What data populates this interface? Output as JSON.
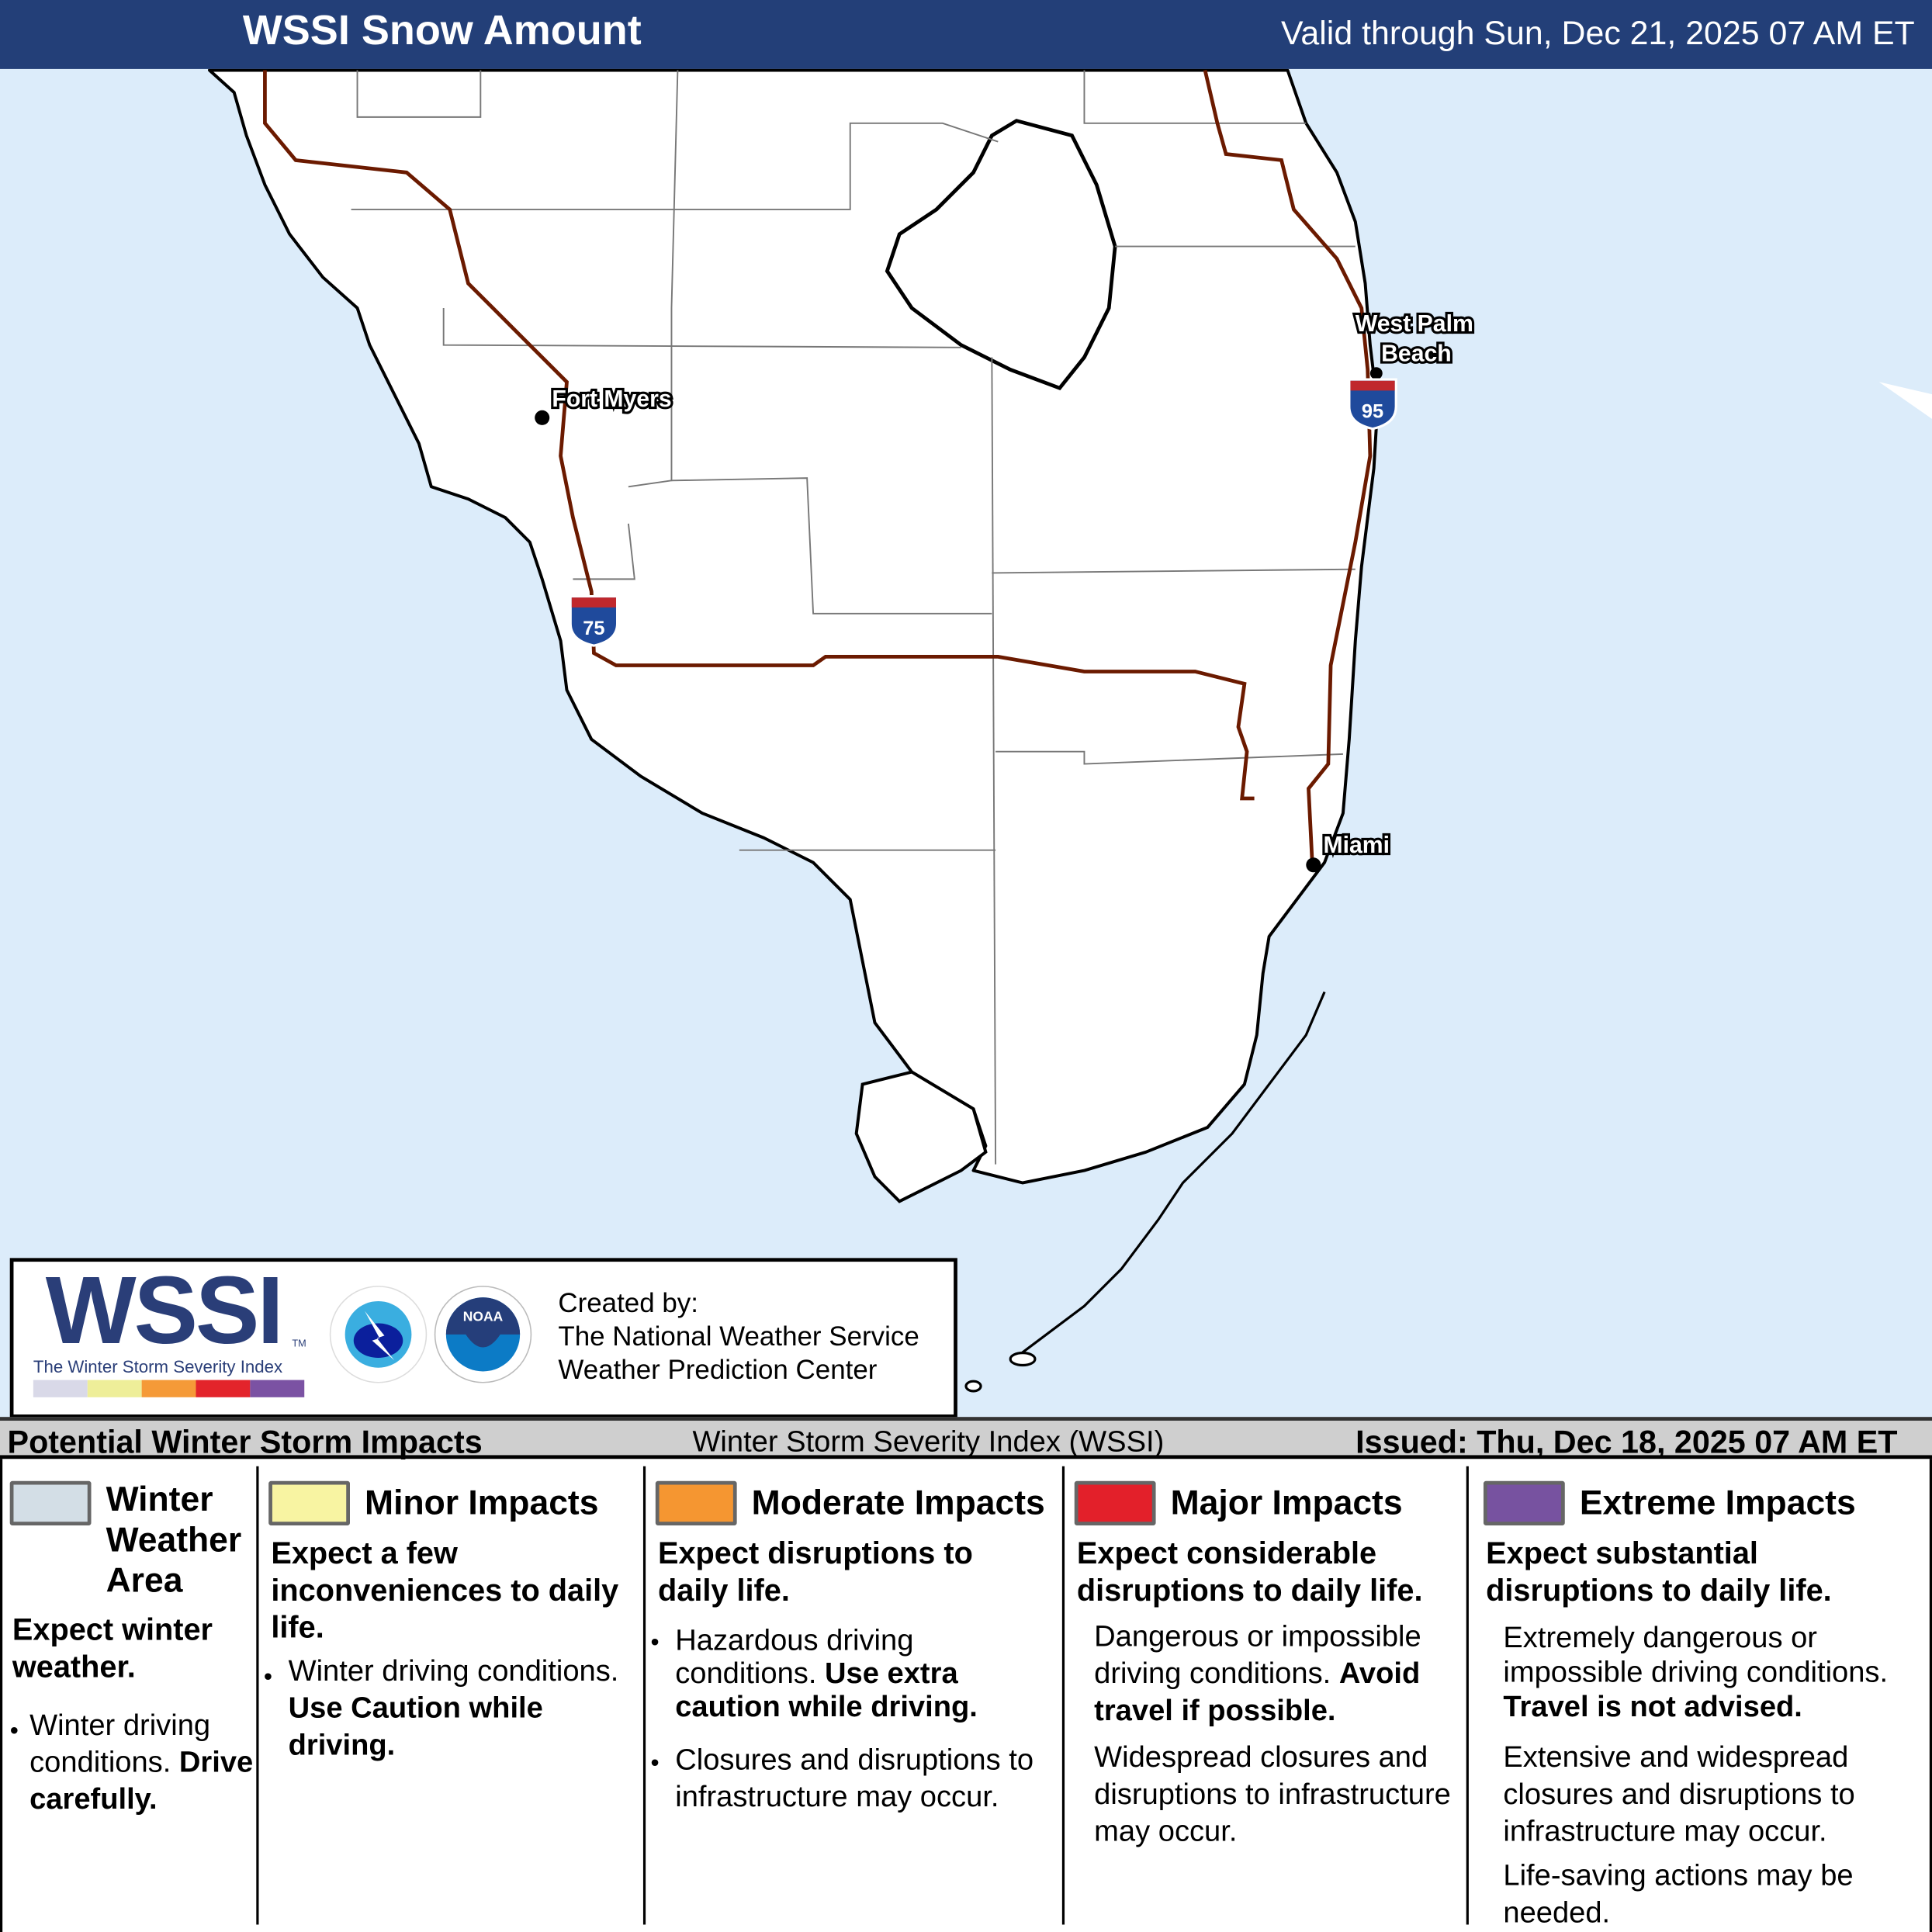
{
  "header": {
    "title": "WSSI Snow Amount",
    "valid": "Valid through Sun, Dec 21, 2025 07 AM ET"
  },
  "map": {
    "cities": [
      "Fort Myers",
      "West Palm Beach",
      "Miami"
    ],
    "west_palm_lines": [
      "West Palm",
      "Beach"
    ],
    "interstates": [
      "75",
      "95"
    ],
    "colors": {
      "water": "#dcecfa",
      "land": "#ffffff",
      "roads": "#6b1a00",
      "county_lines": "#777777",
      "coast": "#000000",
      "shield_blue": "#1f4a9c",
      "shield_red": "#c0282d"
    }
  },
  "logo": {
    "wssi": "WSSI",
    "tm": "TM",
    "subtitle": "The Winter Storm Severity Index",
    "bar_colors": [
      "#d9d9e8",
      "#eeee99",
      "#f59a38",
      "#e3242b",
      "#7b52a3"
    ],
    "nws_text": "NATIONAL WEATHER SERVICE",
    "noaa_text": "NOAA",
    "created_by": "Created by:",
    "org1": "The National Weather Service",
    "org2": "Weather Prediction Center"
  },
  "impacts_bar": {
    "left": "Potential Winter Storm Impacts",
    "middle": "Winter Storm Severity Index (WSSI)",
    "right": "Issued: Thu, Dec 18, 2025 07 AM ET"
  },
  "legend": [
    {
      "color": "#d3dee6",
      "title_lines": [
        "Winter",
        "Weather",
        "Area"
      ],
      "heading": "Expect winter weather.",
      "bullets": [
        "Winter driving conditions. "
      ],
      "bold": "Drive carefully."
    },
    {
      "color": "#f8f4a2",
      "title": "Minor Impacts",
      "heading": "Expect a few inconveniences to daily life.",
      "bullet_text": "Winter driving conditions. ",
      "bold": "Use Caution while driving."
    },
    {
      "color": "#f59631",
      "title": "Moderate Impacts",
      "heading": "Expect disruptions to daily life.",
      "b1": "Hazardous driving conditions. ",
      "b1_bold": "Use extra caution while driving.",
      "b2": "Closures and disruptions to infrastructure may occur."
    },
    {
      "color": "#e3202a",
      "title": "Major Impacts",
      "heading": "Expect considerable disruptions to daily life.",
      "p1": "Dangerous or impossible driving conditions. ",
      "p1_bold": "Avoid travel if possible.",
      "p2": "Widespread closures and disruptions to infrastructure may occur."
    },
    {
      "color": "#7752a0",
      "title": "Extreme Impacts",
      "heading": "Expect substantial disruptions to daily life.",
      "p1": "Extremely dangerous or impossible driving conditions.",
      "p1_bold": "Travel is not advised.",
      "p2": "Extensive and widespread closures and disruptions to infrastructure may occur.",
      "p3": "Life-saving actions may be needed."
    }
  ]
}
